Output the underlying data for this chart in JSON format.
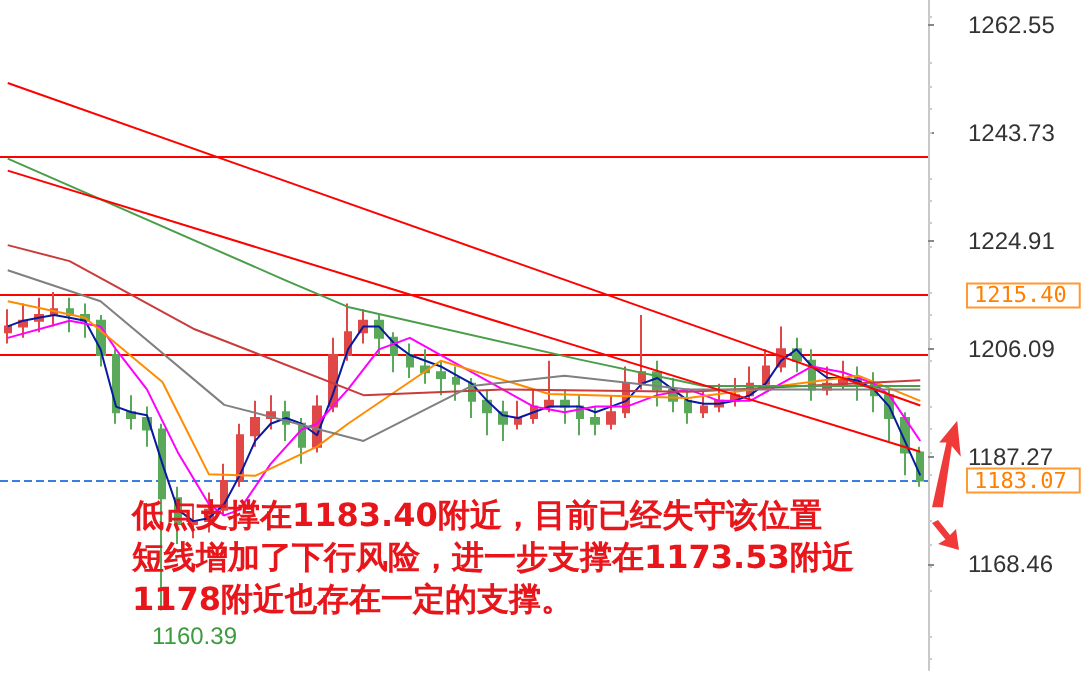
{
  "chart_data": {
    "type": "candlestick",
    "tick_labels": "y",
    "ylim": [
      1150,
      1267
    ],
    "yticks": [
      1168.46,
      1187.27,
      1206.09,
      1224.91,
      1243.73,
      1262.55
    ],
    "categories": [
      null,
      null,
      null,
      null,
      null,
      null,
      null,
      null,
      null,
      null,
      null,
      null,
      null,
      null,
      null,
      null,
      null,
      null,
      null,
      null,
      null,
      null,
      null,
      null,
      null,
      null,
      null,
      null,
      null,
      null,
      null,
      null,
      null,
      null,
      null,
      null,
      null,
      null,
      null,
      null,
      null,
      null,
      null,
      null,
      null,
      null,
      null,
      null,
      null,
      null,
      null,
      null,
      null,
      null,
      null,
      null,
      null,
      null,
      null,
      null
    ],
    "ohlc": [
      [
        1209,
        1213,
        1207,
        1210
      ],
      [
        1210,
        1214,
        1208,
        1211
      ],
      [
        1211,
        1215,
        1209,
        1212
      ],
      [
        1212,
        1216,
        1210,
        1213
      ],
      [
        1213,
        1215,
        1209,
        1212
      ],
      [
        1212,
        1214,
        1208,
        1211
      ],
      [
        1211,
        1212,
        1203,
        1205
      ],
      [
        1205,
        1206,
        1193,
        1195
      ],
      [
        1195,
        1198,
        1192,
        1194
      ],
      [
        1194,
        1196,
        1189,
        1192
      ],
      [
        1192,
        1193,
        1160.39,
        1180
      ],
      [
        1180,
        1182,
        1172,
        1175.5
      ],
      [
        1175.5,
        1179,
        1173,
        1176
      ],
      [
        1176,
        1181,
        1174,
        1178
      ],
      [
        1178,
        1186,
        1177,
        1183
      ],
      [
        1183,
        1193,
        1182,
        1191
      ],
      [
        1191,
        1197,
        1189,
        1194
      ],
      [
        1194,
        1198,
        1192,
        1195
      ],
      [
        1195,
        1197,
        1190,
        1193
      ],
      [
        1193,
        1194,
        1186,
        1189
      ],
      [
        1189,
        1198,
        1188,
        1196
      ],
      [
        1196,
        1208,
        1195,
        1205
      ],
      [
        1205,
        1214,
        1204,
        1209
      ],
      [
        1209,
        1213,
        1207,
        1211
      ],
      [
        1211,
        1212,
        1205,
        1208
      ],
      [
        1208,
        1209,
        1202,
        1205
      ],
      [
        1205,
        1207,
        1201,
        1203
      ],
      [
        1203,
        1206,
        1200,
        1202
      ],
      [
        1202,
        1204,
        1198,
        1201
      ],
      [
        1201,
        1203,
        1197,
        1200
      ],
      [
        1200,
        1201,
        1194,
        1197
      ],
      [
        1197,
        1199,
        1191,
        1195
      ],
      [
        1195,
        1197,
        1190,
        1193
      ],
      [
        1193,
        1197,
        1192,
        1194
      ],
      [
        1194,
        1199,
        1193,
        1196
      ],
      [
        1196,
        1204,
        1195,
        1197
      ],
      [
        1197,
        1199,
        1193,
        1196
      ],
      [
        1196,
        1198,
        1191,
        1194
      ],
      [
        1194,
        1196,
        1191,
        1193
      ],
      [
        1193,
        1198,
        1192,
        1195
      ],
      [
        1195,
        1203,
        1194,
        1200
      ],
      [
        1200,
        1212,
        1199,
        1202
      ],
      [
        1202,
        1204,
        1196,
        1199
      ],
      [
        1199,
        1201,
        1195,
        1197
      ],
      [
        1197,
        1199,
        1193,
        1195
      ],
      [
        1195,
        1199,
        1194,
        1196
      ],
      [
        1196,
        1200,
        1195,
        1197
      ],
      [
        1197,
        1201,
        1196,
        1198
      ],
      [
        1198,
        1203,
        1197,
        1200
      ],
      [
        1200,
        1206,
        1199,
        1203
      ],
      [
        1203,
        1210,
        1202,
        1206
      ],
      [
        1206,
        1208,
        1202,
        1204
      ],
      [
        1204,
        1206,
        1197,
        1199
      ],
      [
        1199,
        1203,
        1198,
        1200
      ],
      [
        1200,
        1204,
        1199,
        1201
      ],
      [
        1201,
        1203,
        1197,
        1200
      ],
      [
        1200,
        1202,
        1195,
        1198
      ],
      [
        1198,
        1199,
        1190,
        1194
      ],
      [
        1194,
        1195,
        1184,
        1188
      ],
      [
        1188,
        1189,
        1182,
        1183.07
      ]
    ],
    "series": [
      {
        "type": "line",
        "color": "#0a1aa0",
        "values": [
          1210,
          1211,
          1211.5,
          1212,
          1211.5,
          1211,
          1206,
          1196,
          1195,
          1194.5,
          1186,
          1178,
          1176,
          1176.5,
          1179,
          1184,
          1190,
          1193,
          1194,
          1193,
          1191,
          1198,
          1206,
          1210,
          1210,
          1207,
          1205,
          1204,
          1203,
          1201.5,
          1200,
          1197,
          1194.5,
          1194,
          1195,
          1196,
          1196,
          1196,
          1195,
          1196,
          1197,
          1200,
          1201,
          1199,
          1197,
          1196.5,
          1196.5,
          1197,
          1198,
          1200,
          1204,
          1206,
          1203,
          1201,
          1201,
          1200.5,
          1199,
          1196,
          1190,
          1184
        ]
      },
      {
        "type": "line",
        "color": "#ff00ff",
        "values": [
          1208,
          null,
          null,
          null,
          1211,
          null,
          1210,
          1206,
          null,
          1199,
          null,
          1188,
          null,
          1179,
          1177,
          1178,
          null,
          1186,
          null,
          1192,
          1193,
          null,
          1199,
          null,
          1206,
          null,
          1208,
          null,
          1205,
          null,
          1202,
          null,
          1199,
          null,
          1196,
          null,
          1195,
          null,
          1196,
          null,
          1196,
          null,
          1198,
          null,
          1199,
          null,
          1197,
          null,
          1197,
          null,
          1200,
          null,
          1203,
          null,
          1202,
          null,
          1200,
          1198,
          null,
          1190
        ]
      },
      {
        "type": "line",
        "color": "#ff8c00",
        "values": [
          1214.4,
          null,
          null,
          null,
          null,
          1211.5,
          null,
          null,
          null,
          null,
          1200.3,
          null,
          null,
          1184.2,
          null,
          null,
          1183.9,
          null,
          null,
          null,
          1189,
          null,
          1193,
          null,
          null,
          null,
          null,
          null,
          1204,
          null,
          null,
          null,
          null,
          null,
          null,
          1198.2,
          null,
          null,
          null,
          null,
          null,
          null,
          null,
          null,
          1197.5,
          null,
          null,
          null,
          null,
          null,
          null,
          null,
          null,
          null,
          null,
          1201.4,
          null,
          null,
          null,
          1197
        ]
      },
      {
        "type": "line",
        "color": "#c83c3c",
        "values": [
          1224.2,
          null,
          null,
          null,
          1221.4,
          null,
          null,
          null,
          null,
          null,
          null,
          null,
          1209.6,
          null,
          null,
          null,
          null,
          null,
          null,
          null,
          null,
          null,
          null,
          1198,
          null,
          null,
          null,
          null,
          null,
          null,
          null,
          null,
          1199,
          null,
          null,
          null,
          null,
          null,
          null,
          null,
          null,
          null,
          null,
          null,
          1198.6,
          null,
          null,
          null,
          null,
          null,
          null,
          null,
          null,
          null,
          null,
          null,
          null,
          null,
          null,
          1200.6
        ]
      },
      {
        "type": "line",
        "color": "#808080",
        "values": [
          1219.8,
          null,
          null,
          null,
          null,
          null,
          1214.4,
          null,
          null,
          null,
          null,
          null,
          null,
          null,
          1196.3,
          null,
          null,
          null,
          null,
          null,
          null,
          null,
          null,
          1190,
          null,
          null,
          null,
          null,
          null,
          null,
          1199.6,
          null,
          null,
          null,
          null,
          null,
          1201.4,
          null,
          null,
          null,
          null,
          null,
          null,
          null,
          1199,
          null,
          null,
          null,
          null,
          null,
          null,
          null,
          null,
          null,
          null,
          null,
          null,
          null,
          null,
          1199
        ]
      },
      {
        "type": "line",
        "color": "#4a9e4a",
        "values": [
          1239.3,
          null,
          null,
          null,
          null,
          null,
          null,
          null,
          null,
          null,
          null,
          null,
          null,
          null,
          null,
          null,
          null,
          null,
          1218,
          null,
          null,
          null,
          1213.4,
          null,
          null,
          null,
          null,
          null,
          null,
          null,
          null,
          null,
          null,
          null,
          null,
          null,
          null,
          1204.2,
          null,
          null,
          null,
          null,
          null,
          null,
          null,
          1199.6,
          null,
          null,
          null,
          null,
          null,
          null,
          null,
          null,
          null,
          null,
          null,
          null,
          null,
          1199.6
        ]
      },
      {
        "type": "line",
        "color": "#ff0000",
        "values": [
          1252.5,
          null,
          null,
          null,
          null,
          null,
          null,
          null,
          null,
          null,
          null,
          null,
          null,
          null,
          null,
          null,
          null,
          null,
          null,
          null,
          null,
          null,
          null,
          null,
          null,
          null,
          null,
          null,
          null,
          null,
          null,
          null,
          null,
          null,
          null,
          null,
          null,
          null,
          null,
          null,
          null,
          null,
          null,
          null,
          null,
          null,
          null,
          null,
          null,
          null,
          null,
          null,
          null,
          null,
          null,
          null,
          null,
          null,
          null,
          1196.2
        ]
      },
      {
        "type": "line",
        "color": "#ff0000",
        "values": [
          1237.2,
          null,
          null,
          null,
          null,
          null,
          null,
          null,
          null,
          null,
          null,
          null,
          null,
          null,
          null,
          null,
          null,
          null,
          null,
          null,
          null,
          null,
          null,
          null,
          null,
          null,
          null,
          null,
          null,
          null,
          null,
          null,
          null,
          null,
          null,
          null,
          null,
          null,
          null,
          null,
          null,
          null,
          null,
          null,
          null,
          null,
          null,
          null,
          null,
          null,
          null,
          null,
          null,
          null,
          null,
          null,
          null,
          null,
          null,
          1188.1
        ]
      }
    ],
    "ref_lines": [
      {
        "axis": "y",
        "value": 1239.8,
        "color": "#ff0000"
      },
      {
        "axis": "y",
        "value": 1215.4,
        "label": "1215.40",
        "color": "#ff0000"
      },
      {
        "axis": "y",
        "value": 1205.2,
        "color": "#ff0000"
      },
      {
        "axis": "y",
        "value": 1183.07,
        "label": "1183.07",
        "color": "#3a7fe0",
        "line_style": "dashed"
      }
    ],
    "annotations": [
      "1160.39",
      "低点支撑在1183.40附近，目前已经失守该位置",
      "短线增加了下行风险，进一步支撑在1173.53附近",
      "1178附近也存在一定的支撑。"
    ]
  }
}
